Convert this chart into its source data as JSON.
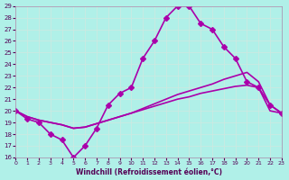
{
  "background_color": "#b0f0e8",
  "grid_color": "#d0e8e0",
  "line_color": "#aa00aa",
  "xlabel": "Windchill (Refroidissement éolien,°C)",
  "xlim": [
    0,
    23
  ],
  "ylim": [
    16,
    29
  ],
  "yticks": [
    16,
    17,
    18,
    19,
    20,
    21,
    22,
    23,
    24,
    25,
    26,
    27,
    28,
    29
  ],
  "xticks": [
    0,
    1,
    2,
    3,
    4,
    5,
    6,
    7,
    8,
    9,
    10,
    11,
    12,
    13,
    14,
    15,
    16,
    17,
    18,
    19,
    20,
    21,
    22,
    23
  ],
  "series": [
    {
      "x": [
        0,
        1,
        2,
        3,
        4,
        5,
        6,
        7,
        8,
        9,
        10,
        11,
        12,
        13,
        14,
        15,
        16,
        17,
        18,
        19,
        20,
        21,
        22,
        23
      ],
      "y": [
        20,
        19.3,
        19,
        18,
        17.5,
        16,
        17,
        18.5,
        20.5,
        21.5,
        22,
        24.5,
        26,
        28,
        29,
        29,
        27.5,
        27,
        25.5,
        24.5,
        22.5,
        22,
        20.5,
        19.8
      ],
      "marker": "D",
      "markersize": 3,
      "linewidth": 1.2
    },
    {
      "x": [
        0,
        1,
        2,
        3,
        4,
        5,
        6,
        7,
        8,
        9,
        10,
        11,
        12,
        13,
        14,
        15,
        16,
        17,
        18,
        19,
        20,
        21,
        22,
        23
      ],
      "y": [
        20,
        19.5,
        19.2,
        19.0,
        18.8,
        18.5,
        18.6,
        18.9,
        19.2,
        19.5,
        19.8,
        20.2,
        20.6,
        21.0,
        21.4,
        21.7,
        22.0,
        22.3,
        22.7,
        23.0,
        23.3,
        22.5,
        20.5,
        19.8
      ],
      "marker": null,
      "markersize": 0,
      "linewidth": 1.2
    },
    {
      "x": [
        0,
        1,
        2,
        3,
        4,
        5,
        6,
        7,
        8,
        9,
        10,
        11,
        12,
        13,
        14,
        15,
        16,
        17,
        18,
        19,
        20,
        21,
        22,
        23
      ],
      "y": [
        20,
        19.5,
        19.2,
        19.0,
        18.8,
        18.5,
        18.6,
        18.9,
        19.2,
        19.5,
        19.8,
        20.1,
        20.4,
        20.7,
        21.0,
        21.2,
        21.5,
        21.7,
        21.9,
        22.1,
        22.2,
        22.0,
        20.0,
        19.8
      ],
      "marker": null,
      "markersize": 0,
      "linewidth": 1.2
    }
  ]
}
